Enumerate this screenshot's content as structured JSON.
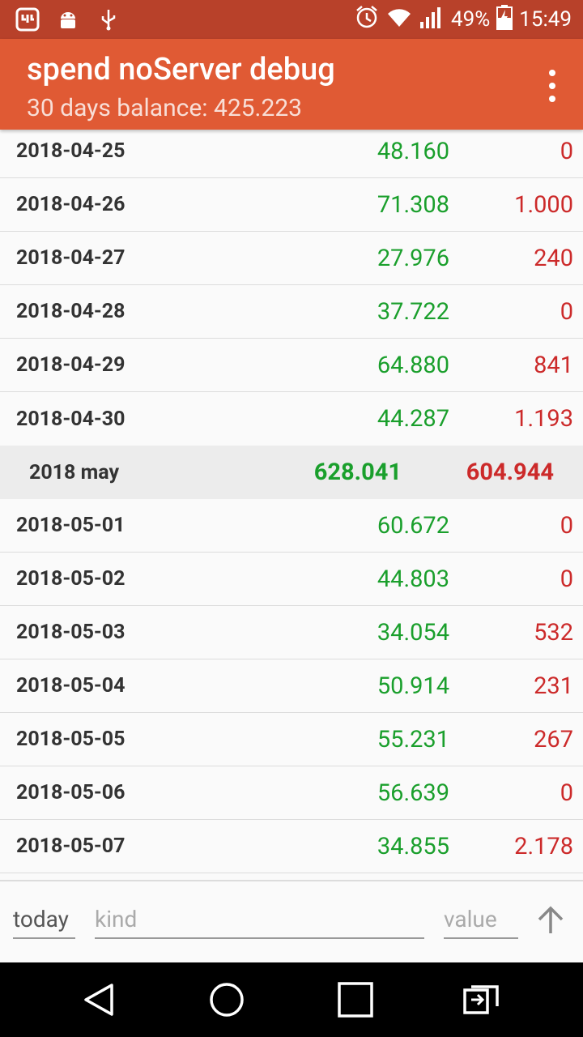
{
  "status_bar": {
    "battery": "49%",
    "time": "15:49",
    "icons": [
      "app-notification-icon",
      "android-debug-icon",
      "usb-icon",
      "alarm-icon",
      "wifi-icon",
      "signal-icon",
      "battery-charging-icon"
    ]
  },
  "app_bar": {
    "title": "spend noServer debug",
    "subtitle": "30 days balance: 425.223",
    "menu_icon": "overflow-menu-icon"
  },
  "rows_before": [
    {
      "date": "2018-04-25",
      "income": "48.160",
      "expense": "0"
    },
    {
      "date": "2018-04-26",
      "income": "71.308",
      "expense": "1.000"
    },
    {
      "date": "2018-04-27",
      "income": "27.976",
      "expense": "240"
    },
    {
      "date": "2018-04-28",
      "income": "37.722",
      "expense": "0"
    },
    {
      "date": "2018-04-29",
      "income": "64.880",
      "expense": "841"
    },
    {
      "date": "2018-04-30",
      "income": "44.287",
      "expense": "1.193"
    }
  ],
  "month_summary": {
    "label": "2018 may",
    "income": "628.041",
    "expense": "604.944"
  },
  "rows_after": [
    {
      "date": "2018-05-01",
      "income": "60.672",
      "expense": "0"
    },
    {
      "date": "2018-05-02",
      "income": "44.803",
      "expense": "0"
    },
    {
      "date": "2018-05-03",
      "income": "34.054",
      "expense": "532"
    },
    {
      "date": "2018-05-04",
      "income": "50.914",
      "expense": "231"
    },
    {
      "date": "2018-05-05",
      "income": "55.231",
      "expense": "267"
    },
    {
      "date": "2018-05-06",
      "income": "56.639",
      "expense": "0"
    },
    {
      "date": "2018-05-07",
      "income": "34.855",
      "expense": "2.178"
    }
  ],
  "input_bar": {
    "date_value": "today",
    "kind_placeholder": "kind",
    "value_placeholder": "value",
    "submit_icon": "arrow-up-icon"
  },
  "colors": {
    "status_bar": "#b8412a",
    "app_bar": "#e05a34",
    "income": "#1a9f2c",
    "expense": "#cc2a2a"
  },
  "nav_bar": {
    "icons": [
      "back-icon",
      "home-icon",
      "recents-icon",
      "switch-app-icon"
    ]
  }
}
